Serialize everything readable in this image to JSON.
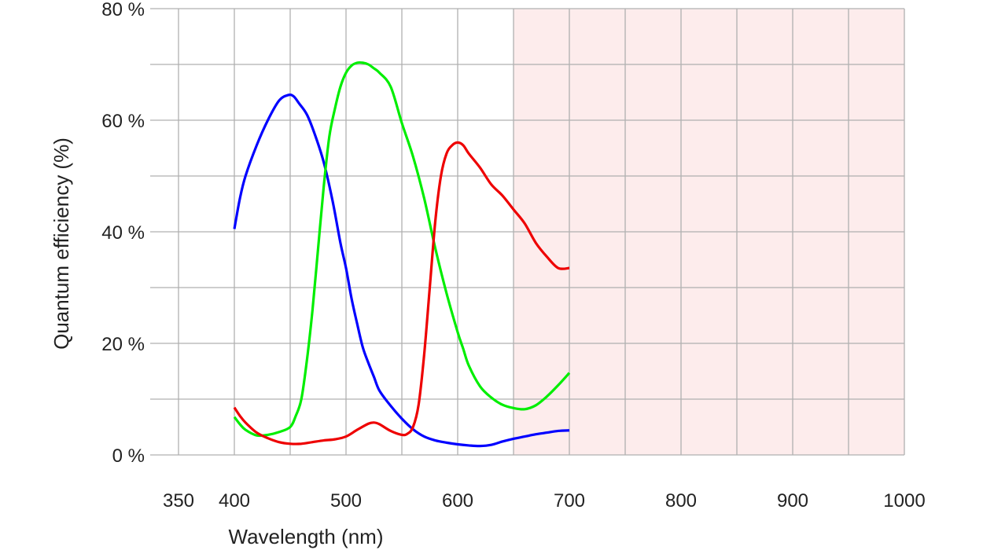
{
  "chart_data": {
    "type": "line",
    "title": "",
    "xlabel": "Wavelength (nm)",
    "ylabel": "Quantum efficiency (%)",
    "xlim": [
      350,
      1000
    ],
    "ylim": [
      0,
      80
    ],
    "xticks": [
      350,
      400,
      500,
      600,
      700,
      800,
      900,
      1000
    ],
    "xtick_labels": [
      "350",
      "400",
      "500",
      "600",
      "700",
      "800",
      "900",
      "1000"
    ],
    "yticks": [
      0,
      20,
      40,
      60,
      80
    ],
    "ytick_labels": [
      "0 %",
      "20 %",
      "40 %",
      "60 %",
      "80 %"
    ],
    "grid": true,
    "x_gridlines": [
      350,
      400,
      450,
      500,
      550,
      600,
      650,
      700,
      750,
      800,
      850,
      900,
      950,
      1000
    ],
    "y_gridlines": [
      0,
      10,
      20,
      30,
      40,
      50,
      60,
      70,
      80
    ],
    "shaded_region": {
      "x_start": 650,
      "x_end": 1000,
      "color": "#fdecec"
    },
    "grid_color": "#b0b0b0",
    "series": [
      {
        "color": "#0000ff",
        "x": [
          400,
          405,
          410,
          420,
          430,
          440,
          448,
          453,
          458,
          465,
          472,
          480,
          488,
          495,
          500,
          505,
          510,
          515,
          520,
          525,
          530,
          540,
          550,
          560,
          570,
          580,
          590,
          600,
          610,
          620,
          630,
          640,
          650,
          660,
          670,
          680,
          690,
          700
        ],
        "y": [
          40.5,
          46,
          50,
          55.5,
          60,
          63.5,
          64.5,
          64.3,
          63,
          61,
          57.5,
          52.5,
          45.5,
          38,
          33.5,
          28,
          23.5,
          19.3,
          16.5,
          14,
          11.5,
          8.8,
          6.5,
          4.6,
          3.3,
          2.6,
          2.2,
          1.9,
          1.7,
          1.6,
          1.8,
          2.4,
          2.9,
          3.3,
          3.7,
          4.0,
          4.3,
          4.4
        ]
      },
      {
        "color": "#00ee00",
        "x": [
          400,
          405,
          410,
          420,
          430,
          440,
          450,
          455,
          460,
          465,
          470,
          475,
          480,
          485,
          490,
          495,
          500,
          505,
          510,
          515,
          520,
          525,
          530,
          540,
          550,
          560,
          570,
          580,
          590,
          600,
          605,
          610,
          620,
          630,
          640,
          650,
          660,
          670,
          680,
          690,
          700
        ],
        "y": [
          6.8,
          5.5,
          4.5,
          3.5,
          3.6,
          4.1,
          5.0,
          7.0,
          10.0,
          17.0,
          26.0,
          37.0,
          48.0,
          57.0,
          62.0,
          66.0,
          68.5,
          69.8,
          70.3,
          70.3,
          70.0,
          69.3,
          68.5,
          66.0,
          59.5,
          53.5,
          46.0,
          37.0,
          29.0,
          22.0,
          19.0,
          16.0,
          12.3,
          10.3,
          9.0,
          8.4,
          8.2,
          8.9,
          10.5,
          12.5,
          14.7
        ]
      },
      {
        "color": "#ee0000",
        "x": [
          400,
          405,
          410,
          420,
          430,
          440,
          450,
          460,
          470,
          480,
          490,
          500,
          510,
          520,
          525,
          530,
          540,
          550,
          555,
          560,
          565,
          570,
          575,
          580,
          585,
          590,
          595,
          600,
          605,
          610,
          620,
          630,
          640,
          650,
          660,
          670,
          680,
          690,
          700
        ],
        "y": [
          8.5,
          7.0,
          5.8,
          4.0,
          3.0,
          2.3,
          2.0,
          2.0,
          2.3,
          2.6,
          2.8,
          3.3,
          4.5,
          5.6,
          5.8,
          5.5,
          4.3,
          3.6,
          3.8,
          5.0,
          9.0,
          18.0,
          30.0,
          42.0,
          50.0,
          54.0,
          55.5,
          56.0,
          55.5,
          54.0,
          51.5,
          48.5,
          46.5,
          44.0,
          41.5,
          38.0,
          35.5,
          33.5,
          33.5
        ]
      }
    ]
  }
}
